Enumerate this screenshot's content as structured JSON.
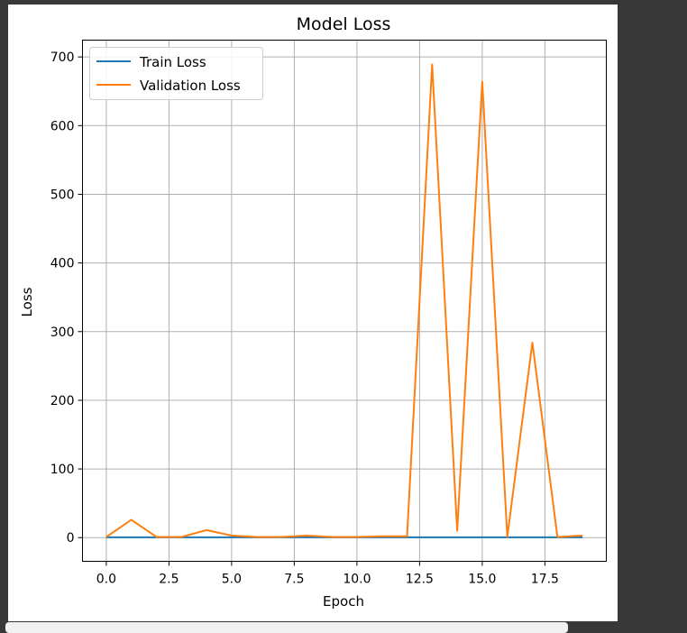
{
  "chart_data": {
    "type": "line",
    "title": "Model Loss",
    "xlabel": "Epoch",
    "ylabel": "Loss",
    "xlim": [
      -0.95,
      19.95
    ],
    "ylim": [
      -34.5,
      724.5
    ],
    "xticks": [
      0.0,
      2.5,
      5.0,
      7.5,
      10.0,
      12.5,
      15.0,
      17.5
    ],
    "xtick_labels": [
      "0.0",
      "2.5",
      "5.0",
      "7.5",
      "10.0",
      "12.5",
      "15.0",
      "17.5"
    ],
    "yticks": [
      0,
      100,
      200,
      300,
      400,
      500,
      600,
      700
    ],
    "ytick_labels": [
      "0",
      "100",
      "200",
      "300",
      "400",
      "500",
      "600",
      "700"
    ],
    "grid": true,
    "legend_position": "upper-left",
    "x": [
      0,
      1,
      2,
      3,
      4,
      5,
      6,
      7,
      8,
      9,
      10,
      11,
      12,
      13,
      14,
      15,
      16,
      17,
      18,
      19
    ],
    "series": [
      {
        "name": "Train Loss",
        "color": "#1f77b4",
        "values": [
          0.5,
          0.5,
          0.5,
          0.5,
          0.5,
          0.5,
          0.5,
          0.5,
          0.5,
          0.5,
          0.5,
          0.5,
          0.5,
          0.5,
          0.5,
          0.5,
          0.5,
          0.5,
          0.5,
          0.5
        ]
      },
      {
        "name": "Validation Loss",
        "color": "#ff7f0e",
        "values": [
          1,
          26,
          1,
          1,
          11,
          3,
          1,
          1,
          3,
          1,
          1,
          2,
          2,
          689,
          10,
          664,
          1,
          284,
          1,
          3
        ]
      }
    ]
  }
}
